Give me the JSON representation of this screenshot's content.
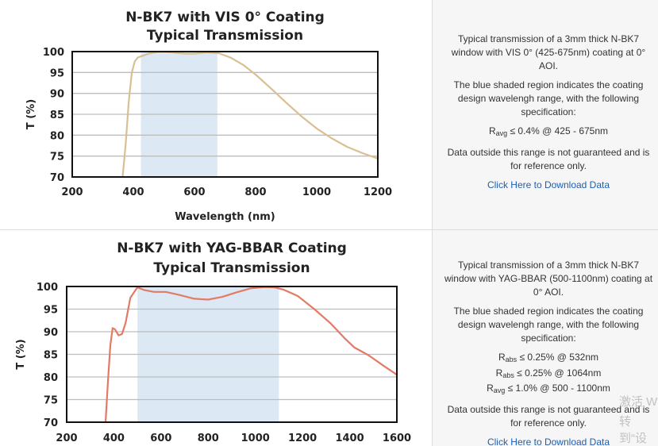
{
  "colors": {
    "band": "#dce9f5",
    "plot_border": "#111111",
    "grid": "#bdbdbd",
    "curve1": "#d9bf93",
    "curve2": "#e37a66",
    "link": "#1a5fb4"
  },
  "panels": [
    {
      "chart_data": {
        "type": "line",
        "title": [
          "N-BK7 with VIS 0° Coating",
          "Typical Transmission"
        ],
        "xlabel": "Wavelength (nm)",
        "ylabel": "T (%)",
        "xlim": [
          200,
          1200
        ],
        "ylim": [
          70,
          100
        ],
        "xticks": [
          200,
          400,
          600,
          800,
          1000,
          1200
        ],
        "yticks": [
          100,
          95,
          90,
          85,
          80,
          75,
          70
        ],
        "grid": true,
        "shaded_region": [
          425,
          675
        ],
        "series": [
          {
            "x": [
              365,
              375,
              385,
              395,
              405,
              415,
              430,
              450,
              480,
              510,
              540,
              570,
              600,
              640,
              680,
              720,
              760,
              800,
              850,
              900,
              950,
              1000,
              1050,
              1100,
              1150,
              1200
            ],
            "y": [
              70,
              78,
              88,
              95,
              97.7,
              98.6,
              99.0,
              99.5,
              99.9,
              99.9,
              99.7,
              99.5,
              99.5,
              99.8,
              99.6,
              98.5,
              96.8,
              94.5,
              91.2,
              87.8,
              84.5,
              81.6,
              79.2,
              77.2,
              75.7,
              74.4
            ]
          }
        ]
      },
      "description": {
        "intro": "Typical transmission of a 3mm thick N-BK7 window with VIS 0° (425-675nm) coating at 0° AOI.",
        "shaded": "The blue shaded region indicates the coating design wavelengh range, with the following specification:",
        "specs": [
          {
            "sym": "R",
            "sub": "avg",
            "text": "≤ 0.4% @ 425 - 675nm"
          }
        ],
        "outside": "Data outside this range is not guaranteed and is for reference only.",
        "link": "Click Here to Download Data"
      }
    },
    {
      "chart_data": {
        "type": "line",
        "title": [
          "N-BK7 with YAG-BBAR Coating",
          "Typical Transmission"
        ],
        "xlabel": "",
        "ylabel": "T (%)",
        "xlim": [
          200,
          1600
        ],
        "ylim": [
          70,
          100
        ],
        "xticks": [
          200,
          400,
          600,
          800,
          1000,
          1200,
          1400,
          1600
        ],
        "yticks": [
          100,
          95,
          90,
          85,
          80,
          75,
          70
        ],
        "grid": true,
        "shaded_region": [
          500,
          1100
        ],
        "series": [
          {
            "x": [
              365,
              375,
              385,
              395,
              405,
              420,
              435,
              450,
              470,
              500,
              530,
              570,
              620,
              680,
              740,
              800,
              860,
              920,
              980,
              1040,
              1080,
              1120,
              1180,
              1250,
              1320,
              1380,
              1420,
              1480,
              1540,
              1600
            ],
            "y": [
              70,
              79,
              87,
              90.8,
              90.5,
              89.2,
              89.5,
              92,
              97.5,
              99.8,
              99.2,
              98.8,
              98.8,
              98.1,
              97.3,
              97.1,
              97.7,
              98.7,
              99.6,
              99.9,
              99.8,
              99.3,
              97.9,
              95.0,
              91.8,
              88.5,
              86.5,
              84.8,
              82.6,
              80.5
            ]
          }
        ]
      },
      "description": {
        "intro": "Typical transmission of a 3mm thick N-BK7 window with YAG-BBAR (500-1100nm) coating at 0° AOI.",
        "shaded": "The blue shaded region indicates the coating design wavelengh range, with the following specification:",
        "specs": [
          {
            "sym": "R",
            "sub": "abs",
            "text": "≤ 0.25% @ 532nm"
          },
          {
            "sym": "R",
            "sub": "abs",
            "text": "≤ 0.25% @ 1064nm"
          },
          {
            "sym": "R",
            "sub": "avg",
            "text": "≤ 1.0% @ 500 - 1100nm"
          }
        ],
        "outside": "Data outside this range is not guaranteed and is for reference only.",
        "link": "Click Here to Download Data"
      }
    }
  ],
  "watermark": [
    "激活 W",
    "转到“设"
  ]
}
